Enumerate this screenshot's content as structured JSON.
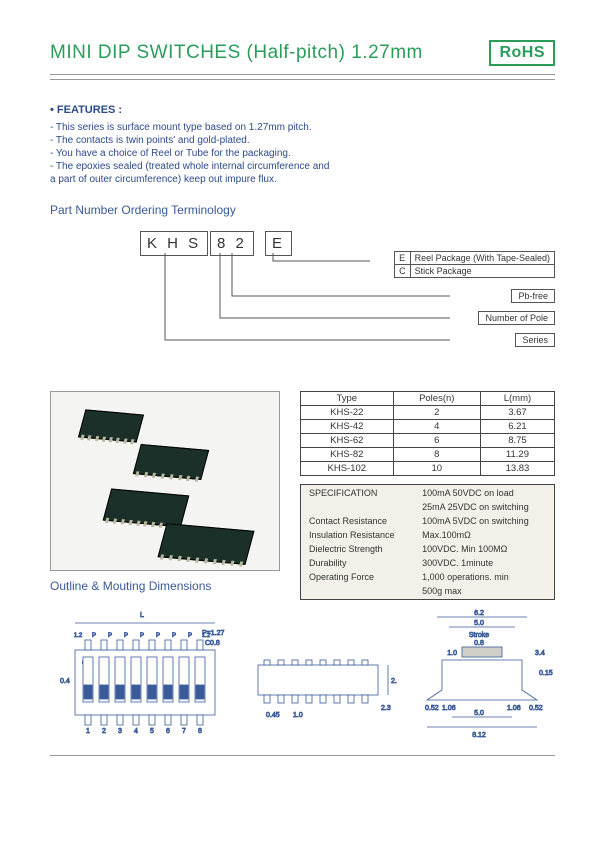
{
  "header": {
    "title": "MINI DIP SWITCHES (Half-pitch) 1.27mm",
    "badge": "RoHS"
  },
  "features": {
    "heading": "• FEATURES :",
    "lines": [
      "- This series is surface mount type based on 1.27mm pitch.",
      "- The contacts is twin points' and gold-plated.",
      "- You have a choice of Reel or Tube for the packaging.",
      "- The epoxies sealed (treated whole internal circumference and",
      "  a part of outer circumference) keep out impure flux."
    ]
  },
  "ordering": {
    "title": "Part Number Ordering Terminology",
    "code1": "K H S",
    "code2": "8 2",
    "code3": "E",
    "legend_table": [
      [
        "E",
        "Reel Package (With Tape-Sealed)"
      ],
      [
        "C",
        "Stick Package"
      ]
    ],
    "legend_pb": "Pb-free",
    "legend_pole": "Number of Pole",
    "legend_series": "Series"
  },
  "type_table": {
    "headers": [
      "Type",
      "Poles(n)",
      "L(mm)"
    ],
    "rows": [
      [
        "KHS-22",
        "2",
        "3.67"
      ],
      [
        "KHS-42",
        "4",
        "6.21"
      ],
      [
        "KHS-62",
        "6",
        "8.75"
      ],
      [
        "KHS-82",
        "8",
        "11.29"
      ],
      [
        "KHS-102",
        "10",
        "13.83"
      ]
    ]
  },
  "spec": {
    "title": "SPECIFICATION",
    "left": [
      "",
      "",
      "Contact Resistance",
      "Insulation Resistance",
      "Dielectric Strength",
      "Durability",
      "Operating Force"
    ],
    "right": [
      "100mA 50VDC on load",
      "  25mA 25VDC on switching",
      "100mA   5VDC on switching",
      "Max.100mΩ",
      "100VDC. Min 100MΩ",
      "300VDC. 1minute",
      "1,000 operations. min",
      "500g max"
    ]
  },
  "outline_title": "Outline & Mouting Dimensions",
  "dims": {
    "L": "L",
    "pitch": "P=1.27",
    "c": "C0.8",
    "on": "ON",
    "top_labels_l": [
      "1.2",
      "P",
      "P",
      "P",
      "P",
      "P",
      "P",
      "P",
      "1.2"
    ],
    "bot_labels": [
      "1",
      "2",
      "3",
      "4",
      "5",
      "6",
      "7",
      "8"
    ],
    "h04": "0.4",
    "side_h": "2.2",
    "side_h2": "2.3",
    "side_w": "0.45",
    "side_w2": "1.0",
    "right_top": "6.2",
    "right_5": "5.0",
    "right_stroke": "Stroke",
    "right_08": "0.8",
    "right_10": "1.0",
    "right_34": "3.4",
    "right_015": "0.15",
    "right_052a": "0.52",
    "right_052b": "0.52",
    "right_106a": "1.06",
    "right_106b": "1.06",
    "right_50": "5.0",
    "right_812": "8.12"
  },
  "colors": {
    "accent": "#2a9d5a",
    "blue": "#2d4a8a",
    "chip": "#1a3028",
    "spec_bg": "#f2f0e8"
  }
}
